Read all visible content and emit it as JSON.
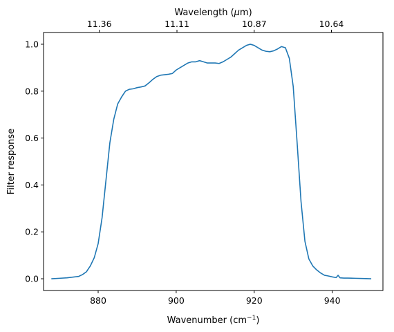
{
  "chart_data": {
    "type": "line",
    "xlabel": "Wavenumber (cm",
    "xlabel_superscript": "−1",
    "xlabel_suffix": ")",
    "ylabel": "Filter response",
    "top_axis_label": "Wavelength (",
    "top_axis_label_symbol": "μ",
    "top_axis_label_suffix": "m)",
    "xlim": [
      866,
      953
    ],
    "ylim": [
      -0.05,
      1.05
    ],
    "x_ticks": [
      880,
      900,
      920,
      940
    ],
    "x_tick_labels": [
      "880",
      "900",
      "920",
      "940"
    ],
    "y_ticks": [
      0.0,
      0.2,
      0.4,
      0.6,
      0.8,
      1.0
    ],
    "y_tick_labels": [
      "0.0",
      "0.2",
      "0.4",
      "0.6",
      "0.8",
      "1.0"
    ],
    "top_ticks": [
      880.3,
      900.2,
      920.0,
      939.8
    ],
    "top_tick_labels": [
      "11.36",
      "11.11",
      "10.87",
      "10.64"
    ],
    "grid": false,
    "line_color": "#1f77b4",
    "series": [
      {
        "x": [
          868,
          870,
          872,
          874,
          875,
          876,
          877,
          878,
          879,
          880,
          881,
          882,
          883,
          884,
          885,
          886,
          887,
          888,
          889,
          890,
          891,
          892,
          893,
          894,
          895,
          896,
          897,
          898,
          899,
          900,
          901,
          902,
          903,
          904,
          905,
          906,
          907,
          908,
          909,
          910,
          911,
          912,
          913,
          914,
          915,
          916,
          917,
          918,
          919,
          920,
          921,
          922,
          923,
          924,
          925,
          926,
          927,
          928,
          929,
          930,
          931,
          932,
          933,
          934,
          935,
          936,
          937,
          938,
          939,
          940,
          941,
          941.5,
          942,
          943,
          944,
          946,
          948,
          950
        ],
        "y": [
          0.0,
          0.002,
          0.004,
          0.008,
          0.01,
          0.018,
          0.03,
          0.055,
          0.09,
          0.15,
          0.26,
          0.42,
          0.58,
          0.68,
          0.745,
          0.775,
          0.8,
          0.808,
          0.81,
          0.815,
          0.818,
          0.822,
          0.835,
          0.85,
          0.862,
          0.868,
          0.87,
          0.872,
          0.875,
          0.89,
          0.9,
          0.91,
          0.92,
          0.925,
          0.925,
          0.93,
          0.925,
          0.92,
          0.92,
          0.92,
          0.918,
          0.925,
          0.935,
          0.945,
          0.96,
          0.975,
          0.985,
          0.995,
          1.0,
          0.995,
          0.985,
          0.975,
          0.97,
          0.968,
          0.972,
          0.98,
          0.99,
          0.985,
          0.94,
          0.82,
          0.58,
          0.33,
          0.16,
          0.085,
          0.055,
          0.038,
          0.025,
          0.015,
          0.012,
          0.008,
          0.005,
          0.015,
          0.004,
          0.003,
          0.003,
          0.002,
          0.001,
          0.0
        ]
      }
    ]
  }
}
